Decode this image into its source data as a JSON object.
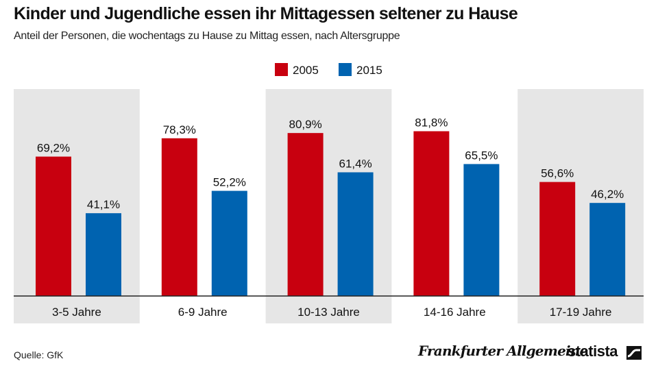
{
  "title": "Kinder und Jugendliche essen ihr Mittagessen seltener zu Hause",
  "subtitle": "Anteil der Personen, die wochentags zu Hause zu Mittag essen, nach Altersgruppe",
  "source": "Quelle: GfK",
  "brand_faz": "Frankfurter Allgemeine",
  "brand_statista": "statista",
  "colors": {
    "series_2005": "#c8000f",
    "series_2015": "#0063b0",
    "band": "#e6e6e6",
    "axis": "#222222"
  },
  "chart_data": {
    "type": "bar",
    "title": "Kinder und Jugendliche essen ihr Mittagessen seltener zu Hause",
    "subtitle": "Anteil der Personen, die wochentags zu Hause zu Mittag essen, nach Altersgruppe",
    "categories": [
      "3-5 Jahre",
      "6-9 Jahre",
      "10-13 Jahre",
      "14-16 Jahre",
      "17-19 Jahre"
    ],
    "series": [
      {
        "name": "2005",
        "values": [
          69.2,
          78.3,
          80.9,
          81.8,
          56.6
        ]
      },
      {
        "name": "2015",
        "values": [
          41.1,
          52.2,
          61.4,
          65.5,
          46.2
        ]
      }
    ],
    "labels": [
      [
        "69,2%",
        "78,3%",
        "80,9%",
        "81,8%",
        "56,6%"
      ],
      [
        "41,1%",
        "52,2%",
        "61,4%",
        "65,5%",
        "46,2%"
      ]
    ],
    "ylim": [
      0,
      100
    ],
    "xlabel": "",
    "ylabel": "",
    "legend_position": "top-center",
    "grid": false
  }
}
